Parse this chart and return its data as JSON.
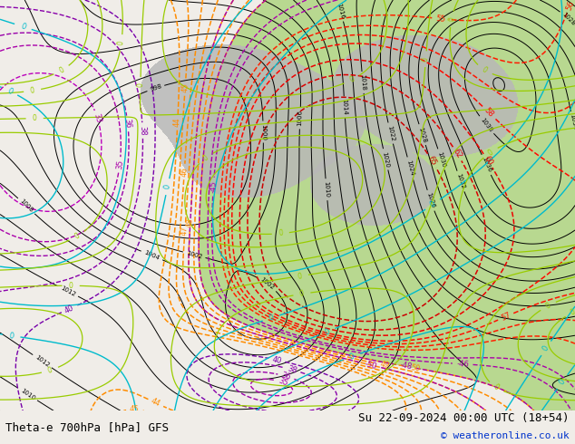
{
  "title_left": "Theta-e 700hPa [hPa] GFS",
  "title_right": "Su 22-09-2024 00:00 UTC (18+54)",
  "copyright": "© weatheronline.co.uk",
  "bg_color": "#f0ede8",
  "fig_width": 6.34,
  "fig_height": 4.9,
  "dpi": 100,
  "title_fontsize": 9,
  "copyright_fontsize": 8,
  "green_fill_color": "#b8d890",
  "gray_fill_color": "#b8b8b8",
  "pressure_color": "#000000",
  "orange_color": "#ff8c00",
  "red_color": "#ff2000",
  "magenta_color": "#cc00cc",
  "dark_magenta_color": "#aa00aa",
  "cyan_color": "#00bbcc",
  "yellow_green_color": "#99cc00",
  "lime_color": "#88bb00"
}
